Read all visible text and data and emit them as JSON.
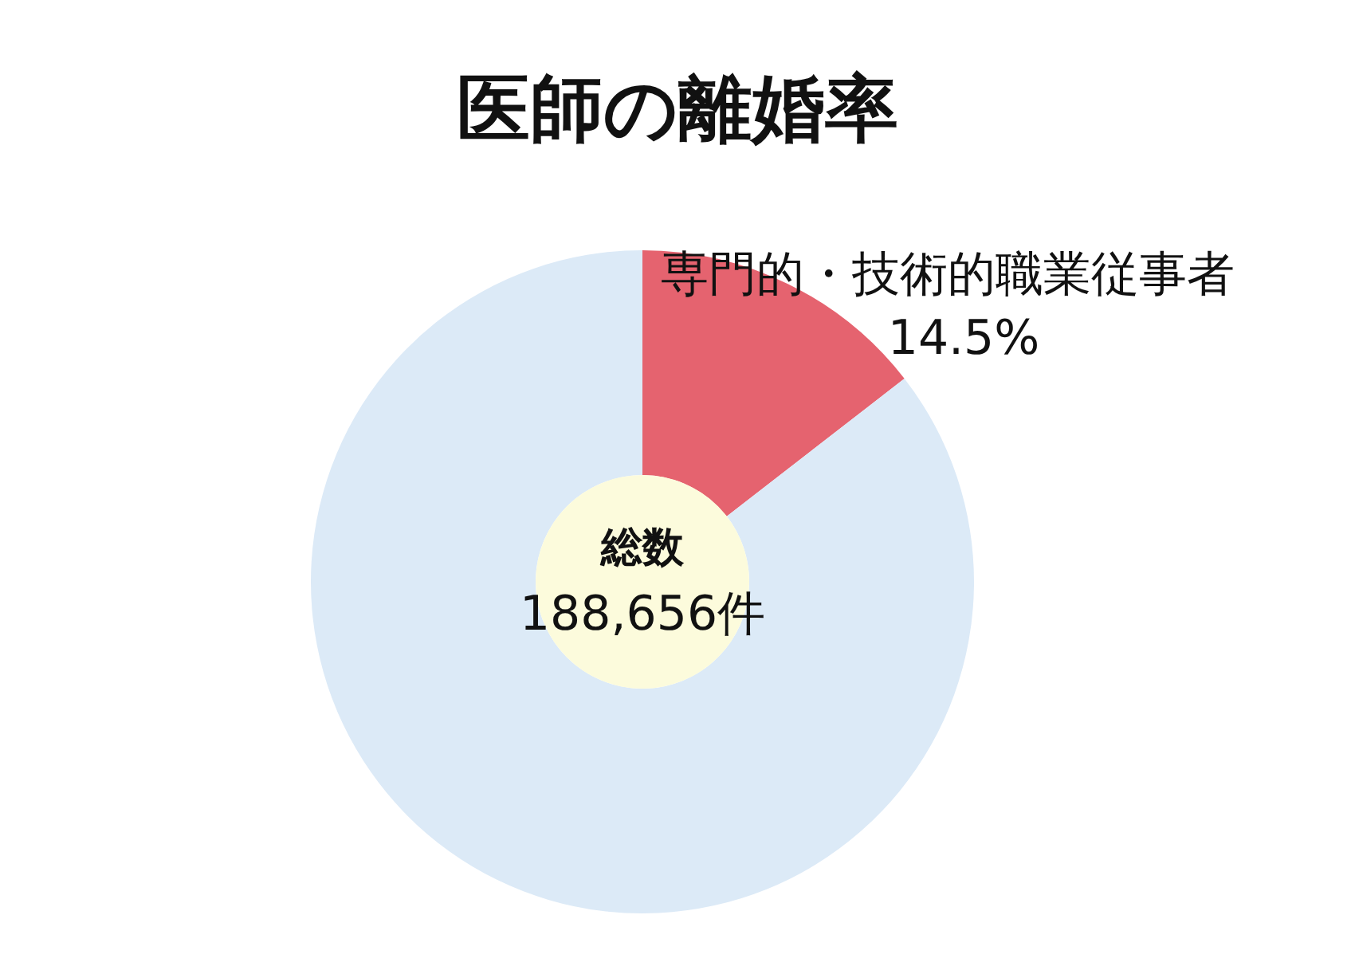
{
  "chart_data": {
    "type": "donut",
    "title": "医師の離婚率",
    "categories": [
      "専門的・技術的職業従事者",
      null
    ],
    "values": [
      14.5,
      85.5
    ],
    "colors": [
      "#e5636f",
      "#dceaf7"
    ],
    "value_labels": [
      "14.5%",
      null
    ],
    "annotations": [
      "総数",
      "188,656件"
    ],
    "legend": false
  }
}
